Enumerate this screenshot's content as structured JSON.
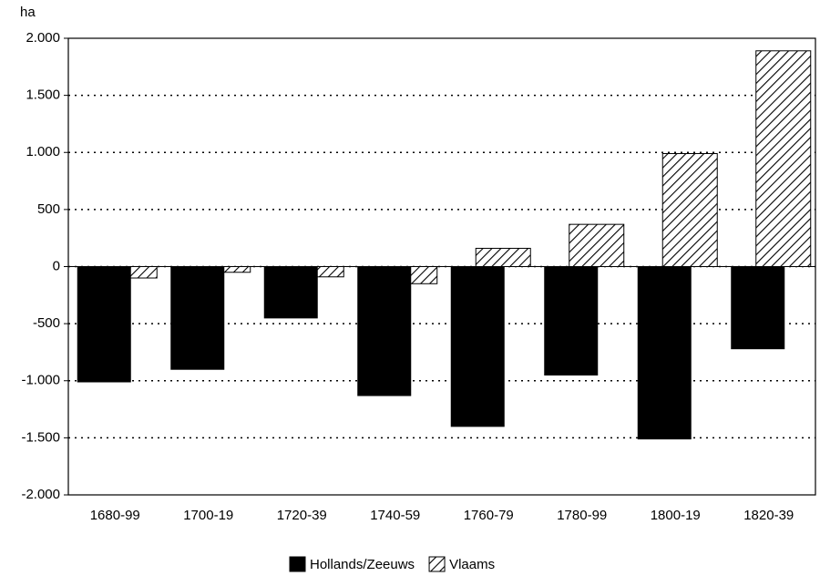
{
  "chart_data": {
    "type": "bar",
    "y_label": "ha",
    "categories": [
      "1680-99",
      "1700-19",
      "1720-39",
      "1740-59",
      "1760-79",
      "1780-99",
      "1800-19",
      "1820-39"
    ],
    "series": [
      {
        "name": "Hollands/Zeeuws",
        "color": "#000000",
        "pattern": "solid",
        "values": [
          -1010,
          -900,
          -450,
          -1130,
          -1400,
          -950,
          -1510,
          -720
        ]
      },
      {
        "name": "Vlaams",
        "color": "#000000",
        "pattern": "hatch",
        "values": [
          -100,
          -50,
          -90,
          -150,
          160,
          370,
          990,
          1890
        ]
      }
    ],
    "ylim": [
      -2000,
      2000
    ],
    "yticks": [
      {
        "value": -2000,
        "label": "-2.000"
      },
      {
        "value": -1500,
        "label": "-1.500"
      },
      {
        "value": -1000,
        "label": "-1.000"
      },
      -500,
      0,
      500,
      {
        "value": 1000,
        "label": "1.000"
      },
      {
        "value": 1500,
        "label": "1.500"
      },
      {
        "value": 2000,
        "label": "2.000"
      }
    ],
    "grid": true,
    "legend": "bottom"
  }
}
